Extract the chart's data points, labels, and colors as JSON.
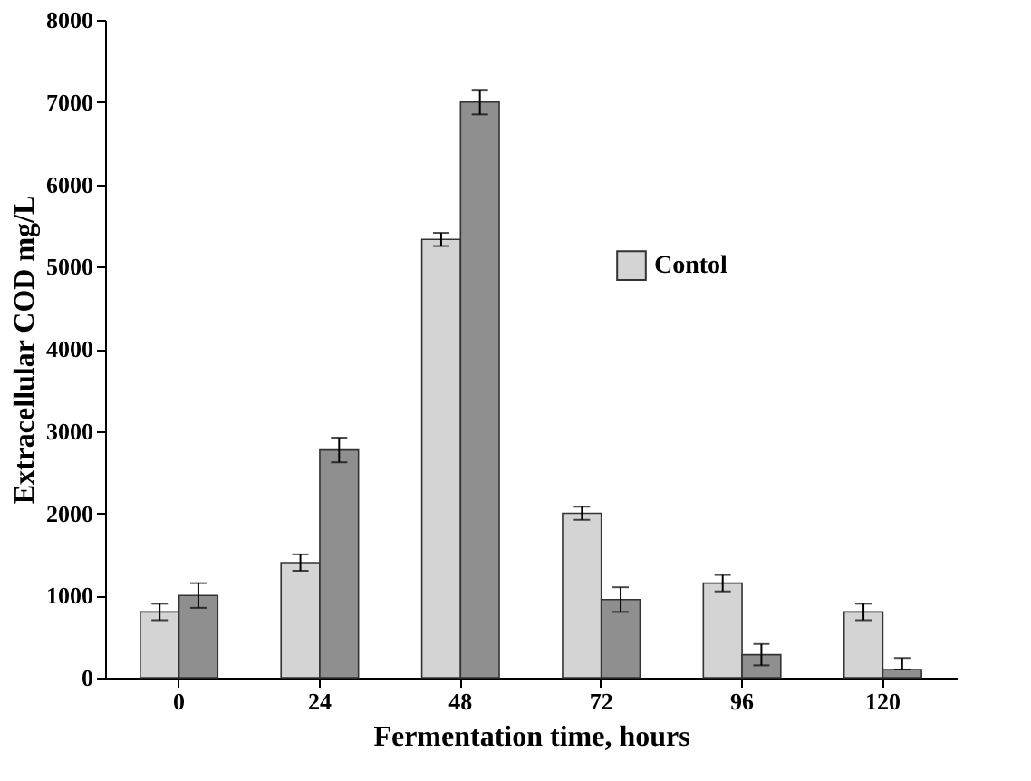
{
  "chart_data": {
    "type": "bar",
    "xlabel": "Fermentation time, hours",
    "ylabel": "Extracellular COD mg/L",
    "categories": [
      "0",
      "24",
      "48",
      "72",
      "96",
      "120"
    ],
    "series": [
      {
        "name": "Contol",
        "color": "#d4d4d4",
        "values": [
          800,
          1400,
          5330,
          2000,
          1150,
          800
        ],
        "errors": [
          100,
          100,
          80,
          80,
          100,
          100
        ]
      },
      {
        "color": "#8f8f8f",
        "values": [
          1000,
          2770,
          7000,
          950,
          280,
          100
        ],
        "errors": [
          150,
          150,
          150,
          150,
          130,
          [
            100,
            240
          ]
        ]
      }
    ],
    "ylim": [
      0,
      8000
    ],
    "yticks": [
      0,
      1000,
      2000,
      3000,
      4000,
      5000,
      6000,
      7000,
      8000
    ],
    "grid": false,
    "legend": "right"
  }
}
